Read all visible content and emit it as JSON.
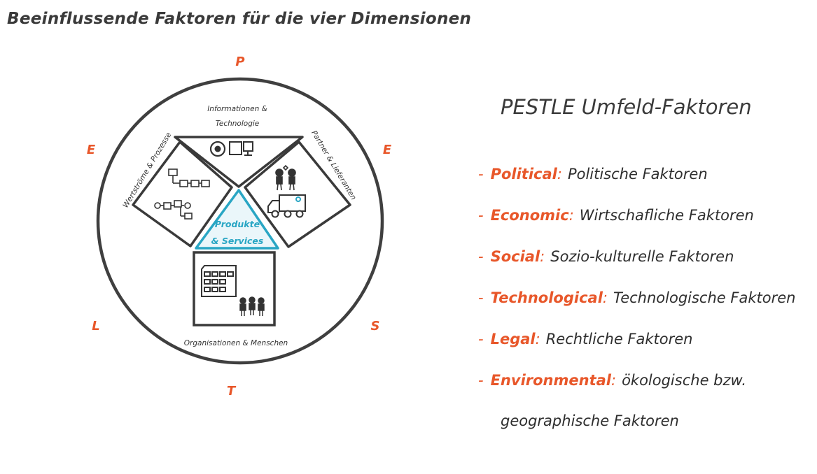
{
  "title": "Beeinflussende Faktoren für die vier Dimensionen",
  "diagram": {
    "letters": {
      "top": "P",
      "top_left": "E",
      "top_right": "E",
      "bottom_left": "L",
      "bottom_right": "S",
      "bottom": "T"
    },
    "segments": {
      "top_line1": "Informationen &",
      "top_line2": "Technologie",
      "left": "Wertströme & Prozesse",
      "right": "Partner & Lieferanten",
      "bottom": "Organisationen & Menschen",
      "center_line1": "Produkte",
      "center_line2": "& Services"
    },
    "colors": {
      "accent": "#e8572a",
      "center": "#29a6c4",
      "ink": "#3a3a3a"
    }
  },
  "pestle": {
    "heading": "PESTLE Umfeld-Faktoren",
    "dash": "-",
    "items": [
      {
        "term": "Political",
        "colon": ":",
        "desc": "Politische Faktoren"
      },
      {
        "term": "Economic",
        "colon": ":",
        "desc": "Wirtschafliche Faktoren"
      },
      {
        "term": "Social",
        "colon": ":",
        "desc": "Sozio-kulturelle Faktoren"
      },
      {
        "term": "Technological",
        "colon": ":",
        "desc": "Technologische Faktoren"
      },
      {
        "term": "Legal",
        "colon": ":",
        "desc": "Rechtliche Faktoren"
      },
      {
        "term": "Environmental",
        "colon": ":",
        "desc": "ökologische bzw.",
        "desc_cont": "geographische Faktoren"
      }
    ]
  }
}
